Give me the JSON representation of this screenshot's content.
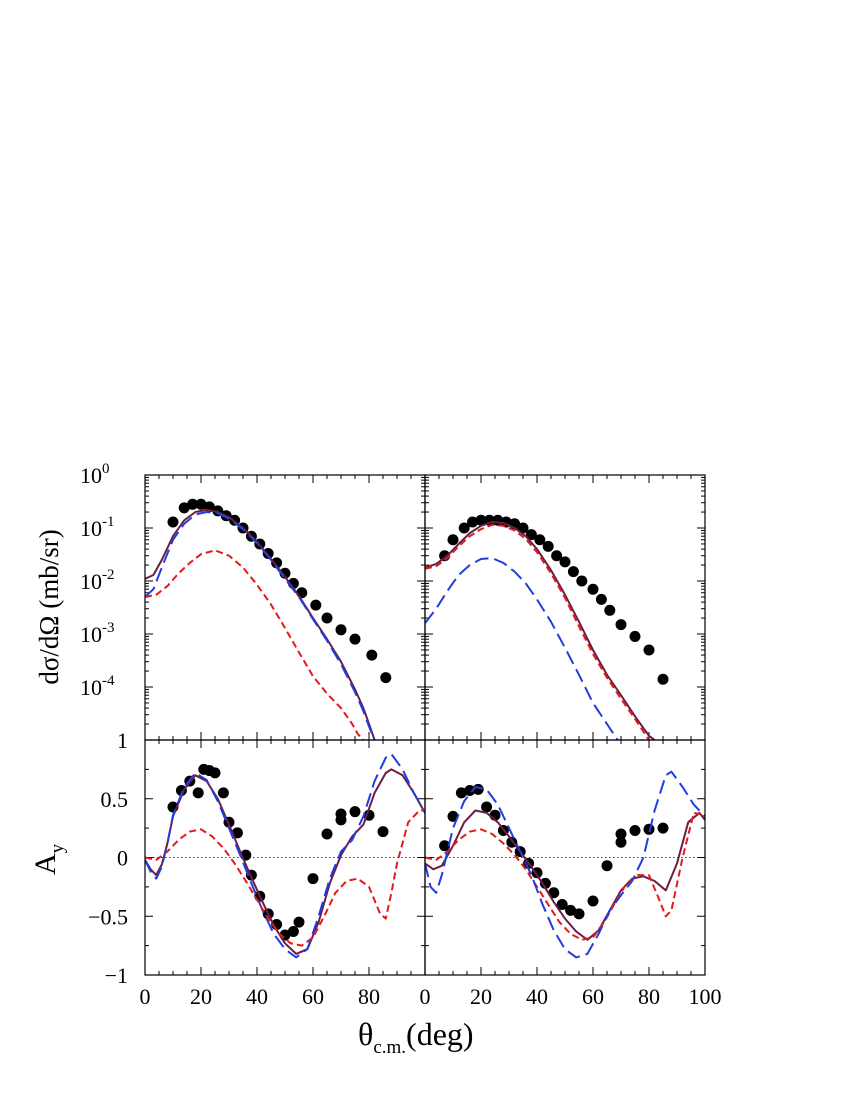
{
  "chart_data": [
    {
      "type": "line",
      "panel": "top-left",
      "yscale": "log",
      "xlim": [
        0,
        100
      ],
      "ylim": [
        1e-05,
        1
      ],
      "ylabel": "dσ/dΩ (mb/sr)",
      "ytick_labels": [
        {
          "base": "10",
          "exp": "0",
          "value": 1
        },
        {
          "base": "10",
          "exp": "-1",
          "value": 0.1
        },
        {
          "base": "10",
          "exp": "-2",
          "value": 0.01
        },
        {
          "base": "10",
          "exp": "-3",
          "value": 0.001
        },
        {
          "base": "10",
          "exp": "-4",
          "value": 0.0001
        }
      ],
      "series": [
        {
          "style": "data",
          "color": "#000000",
          "x": [
            10,
            14,
            17,
            20,
            23,
            26,
            29,
            32,
            35,
            38,
            41,
            44,
            47,
            50,
            53,
            56,
            61,
            65,
            70,
            75,
            81,
            86
          ],
          "y": [
            0.13,
            0.24,
            0.28,
            0.28,
            0.25,
            0.21,
            0.17,
            0.14,
            0.1,
            0.07,
            0.05,
            0.033,
            0.022,
            0.014,
            0.009,
            0.006,
            0.0035,
            0.002,
            0.0012,
            0.0008,
            0.0004,
            0.00015
          ]
        },
        {
          "style": "solid",
          "color": "#6b1e45",
          "x": [
            0,
            3,
            6,
            10,
            14,
            18,
            22,
            26,
            30,
            35,
            40,
            45,
            50,
            55,
            60,
            65,
            70,
            75,
            78,
            80,
            82
          ],
          "y": [
            0.011,
            0.013,
            0.025,
            0.07,
            0.14,
            0.2,
            0.22,
            0.2,
            0.16,
            0.1,
            0.055,
            0.026,
            0.012,
            0.0052,
            0.002,
            0.0008,
            0.0003,
            9e-05,
            4e-05,
            2e-05,
            1e-05
          ]
        },
        {
          "style": "long-dash",
          "color": "#1f3de0",
          "x": [
            0,
            3,
            6,
            10,
            14,
            18,
            22,
            26,
            30,
            35,
            40,
            45,
            50,
            55,
            60,
            65,
            70,
            75,
            78,
            80,
            82
          ],
          "y": [
            0.005,
            0.007,
            0.018,
            0.06,
            0.12,
            0.18,
            0.2,
            0.19,
            0.15,
            0.095,
            0.052,
            0.025,
            0.011,
            0.005,
            0.0019,
            0.00075,
            0.00027,
            8e-05,
            3.5e-05,
            1.8e-05,
            1e-05
          ]
        },
        {
          "style": "short-dash",
          "color": "#e31a1a",
          "x": [
            0,
            4,
            8,
            12,
            16,
            20,
            25,
            30,
            35,
            40,
            45,
            50,
            55,
            60,
            65,
            70,
            74,
            76,
            78
          ],
          "y": [
            0.005,
            0.0055,
            0.008,
            0.014,
            0.022,
            0.032,
            0.038,
            0.03,
            0.018,
            0.0085,
            0.0036,
            0.0013,
            0.00045,
            0.00016,
            7.5e-05,
            4e-05,
            2e-05,
            1.3e-05,
            1e-05
          ]
        }
      ]
    },
    {
      "type": "line",
      "panel": "top-right",
      "yscale": "log",
      "xlim": [
        0,
        100
      ],
      "ylim": [
        1e-05,
        1
      ],
      "series": [
        {
          "style": "data",
          "color": "#000000",
          "x": [
            7,
            10,
            14,
            17,
            20,
            23,
            26,
            29,
            32,
            35,
            38,
            41,
            44,
            47,
            50,
            53,
            56,
            60,
            63,
            66,
            70,
            75,
            80,
            85
          ],
          "y": [
            0.03,
            0.06,
            0.1,
            0.13,
            0.14,
            0.14,
            0.14,
            0.13,
            0.12,
            0.1,
            0.075,
            0.06,
            0.045,
            0.03,
            0.023,
            0.015,
            0.01,
            0.007,
            0.0045,
            0.0028,
            0.0015,
            0.0009,
            0.0005,
            0.00014
          ]
        },
        {
          "style": "solid",
          "color": "#6b1e45",
          "x": [
            0,
            4,
            8,
            12,
            16,
            20,
            24,
            28,
            32,
            36,
            40,
            45,
            50,
            55,
            60,
            65,
            70,
            75,
            80,
            82
          ],
          "y": [
            0.018,
            0.021,
            0.03,
            0.05,
            0.08,
            0.11,
            0.13,
            0.125,
            0.1,
            0.07,
            0.04,
            0.016,
            0.0055,
            0.0017,
            0.0005,
            0.00017,
            7e-05,
            2.8e-05,
            1.2e-05,
            1e-05
          ]
        },
        {
          "style": "short-dash",
          "color": "#e31a1a",
          "x": [
            0,
            4,
            8,
            12,
            16,
            20,
            24,
            28,
            32,
            36,
            40,
            45,
            50,
            55,
            60,
            65,
            70,
            75,
            80,
            82
          ],
          "y": [
            0.017,
            0.019,
            0.027,
            0.045,
            0.07,
            0.095,
            0.115,
            0.11,
            0.09,
            0.062,
            0.035,
            0.014,
            0.0048,
            0.0014,
            0.00042,
            0.00015,
            6e-05,
            2.5e-05,
            1e-05,
            8.5e-06
          ]
        },
        {
          "style": "long-dash",
          "color": "#1f3de0",
          "x": [
            0,
            4,
            8,
            12,
            16,
            20,
            24,
            28,
            32,
            36,
            40,
            45,
            50,
            55,
            60,
            65,
            70,
            75
          ],
          "y": [
            0.0016,
            0.003,
            0.0065,
            0.013,
            0.02,
            0.026,
            0.027,
            0.022,
            0.015,
            0.009,
            0.0045,
            0.0017,
            0.00055,
            0.00017,
            5e-05,
            2e-05,
            8e-06,
            3e-06
          ]
        }
      ]
    },
    {
      "type": "line",
      "panel": "bottom-left",
      "yscale": "linear",
      "xlim": [
        0,
        100
      ],
      "ylim": [
        -1,
        1
      ],
      "ylabel": "A",
      "ylabel_sub": "y",
      "ytick_labels": [
        "1",
        "0.5",
        "0",
        "−0.5",
        "−1"
      ],
      "xtick_labels": [
        "0",
        "20",
        "40",
        "60",
        "80"
      ],
      "series": [
        {
          "style": "data",
          "color": "#000000",
          "x": [
            10,
            13,
            16,
            19,
            21,
            23,
            25,
            28,
            30,
            33,
            36,
            38,
            41,
            44,
            47,
            50,
            53,
            55,
            60,
            65,
            70,
            70,
            75,
            80,
            85
          ],
          "y": [
            0.43,
            0.57,
            0.65,
            0.55,
            0.75,
            0.74,
            0.72,
            0.55,
            0.3,
            0.21,
            0.02,
            -0.15,
            -0.33,
            -0.48,
            -0.57,
            -0.66,
            -0.63,
            -0.55,
            -0.18,
            0.2,
            0.32,
            0.37,
            0.39,
            0.36,
            0.22
          ]
        },
        {
          "style": "solid",
          "color": "#6b1e45",
          "x": [
            0,
            2,
            4,
            6,
            8,
            10,
            14,
            18,
            22,
            26,
            30,
            34,
            38,
            42,
            46,
            50,
            54,
            58,
            62,
            66,
            70,
            74,
            78,
            82,
            86,
            88,
            92,
            96,
            100
          ],
          "y": [
            -0.02,
            -0.1,
            -0.15,
            -0.06,
            0.12,
            0.35,
            0.58,
            0.7,
            0.65,
            0.5,
            0.28,
            0.05,
            -0.17,
            -0.38,
            -0.58,
            -0.73,
            -0.82,
            -0.78,
            -0.55,
            -0.22,
            0.02,
            0.18,
            0.28,
            0.55,
            0.72,
            0.75,
            0.7,
            0.55,
            0.38
          ]
        },
        {
          "style": "long-dash",
          "color": "#1f3de0",
          "x": [
            0,
            2,
            4,
            6,
            8,
            10,
            14,
            18,
            22,
            26,
            30,
            34,
            38,
            42,
            46,
            50,
            54,
            58,
            62,
            66,
            70,
            74,
            78,
            82,
            86,
            88,
            92,
            96,
            100
          ],
          "y": [
            -0.02,
            -0.12,
            -0.18,
            -0.08,
            0.12,
            0.36,
            0.6,
            0.72,
            0.66,
            0.48,
            0.25,
            0.02,
            -0.22,
            -0.45,
            -0.65,
            -0.78,
            -0.85,
            -0.78,
            -0.5,
            -0.18,
            0.05,
            0.15,
            0.35,
            0.65,
            0.85,
            0.88,
            0.75,
            0.55,
            0.38
          ]
        },
        {
          "style": "short-dash",
          "color": "#e31a1a",
          "x": [
            0,
            4,
            8,
            12,
            16,
            20,
            24,
            28,
            32,
            36,
            40,
            44,
            48,
            52,
            56,
            60,
            64,
            68,
            72,
            76,
            80,
            84,
            86,
            88,
            90,
            94,
            98,
            100
          ],
          "y": [
            0,
            -0.02,
            0.05,
            0.15,
            0.22,
            0.24,
            0.18,
            0.08,
            -0.05,
            -0.2,
            -0.36,
            -0.52,
            -0.65,
            -0.73,
            -0.75,
            -0.68,
            -0.5,
            -0.3,
            -0.2,
            -0.18,
            -0.25,
            -0.48,
            -0.52,
            -0.3,
            -0.05,
            0.3,
            0.4,
            0.4
          ]
        }
      ]
    },
    {
      "type": "line",
      "panel": "bottom-right",
      "yscale": "linear",
      "xlim": [
        0,
        100
      ],
      "ylim": [
        -1,
        1
      ],
      "xlabel": "θ",
      "xlabel_sub": "c.m.",
      "xlabel_rest": "(deg)",
      "xtick_labels": [
        "0",
        "20",
        "40",
        "60",
        "80",
        "100"
      ],
      "series": [
        {
          "style": "data",
          "color": "#000000",
          "x": [
            7,
            10,
            13,
            16,
            19,
            22,
            25,
            28,
            31,
            34,
            37,
            40,
            43,
            46,
            49,
            52,
            55,
            60,
            65,
            70,
            70,
            75,
            80,
            85
          ],
          "y": [
            0.1,
            0.35,
            0.55,
            0.57,
            0.58,
            0.43,
            0.36,
            0.23,
            0.13,
            0.05,
            -0.05,
            -0.13,
            -0.22,
            -0.3,
            -0.4,
            -0.45,
            -0.48,
            -0.37,
            -0.07,
            0.13,
            0.2,
            0.23,
            0.24,
            0.25
          ]
        },
        {
          "style": "solid",
          "color": "#6b1e45",
          "x": [
            0,
            3,
            6,
            10,
            14,
            18,
            22,
            26,
            30,
            34,
            38,
            42,
            46,
            50,
            54,
            58,
            62,
            66,
            70,
            74,
            78,
            82,
            86,
            90,
            94,
            98,
            100
          ],
          "y": [
            -0.05,
            -0.1,
            -0.07,
            0.1,
            0.3,
            0.4,
            0.38,
            0.3,
            0.18,
            0.05,
            -0.08,
            -0.22,
            -0.38,
            -0.52,
            -0.63,
            -0.7,
            -0.62,
            -0.45,
            -0.28,
            -0.18,
            -0.16,
            -0.2,
            -0.28,
            -0.05,
            0.3,
            0.38,
            0.32
          ]
        },
        {
          "style": "short-dash",
          "color": "#e31a1a",
          "x": [
            0,
            4,
            8,
            12,
            16,
            20,
            24,
            28,
            32,
            36,
            40,
            44,
            48,
            52,
            56,
            60,
            64,
            68,
            72,
            76,
            80,
            84,
            86,
            88,
            92,
            96,
            100
          ],
          "y": [
            0,
            -0.02,
            0.05,
            0.15,
            0.22,
            0.24,
            0.2,
            0.12,
            0.02,
            -0.1,
            -0.25,
            -0.4,
            -0.55,
            -0.65,
            -0.7,
            -0.68,
            -0.55,
            -0.38,
            -0.22,
            -0.15,
            -0.15,
            -0.38,
            -0.5,
            -0.45,
            0.0,
            0.38,
            0.36
          ]
        },
        {
          "style": "long-dash",
          "color": "#1f3de0",
          "x": [
            0,
            2,
            4,
            6,
            8,
            10,
            14,
            18,
            22,
            26,
            30,
            34,
            38,
            42,
            46,
            50,
            54,
            58,
            62,
            66,
            70,
            74,
            78,
            82,
            86,
            88,
            92,
            96,
            100
          ],
          "y": [
            -0.05,
            -0.25,
            -0.3,
            -0.15,
            0.05,
            0.25,
            0.48,
            0.6,
            0.58,
            0.45,
            0.25,
            0.05,
            -0.15,
            -0.4,
            -0.62,
            -0.78,
            -0.85,
            -0.82,
            -0.65,
            -0.45,
            -0.32,
            -0.2,
            0.0,
            0.4,
            0.7,
            0.73,
            0.6,
            0.45,
            0.35
          ]
        }
      ]
    }
  ]
}
